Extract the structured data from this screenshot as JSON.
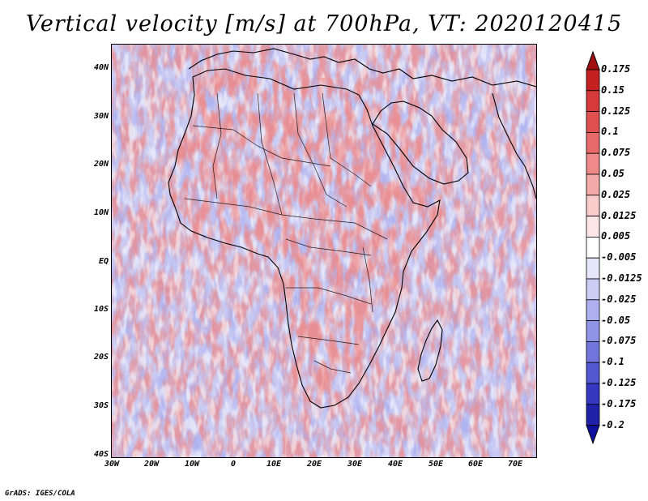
{
  "title": "Vertical velocity [m/s] at 700hPa, VT: 2020120415",
  "lat_labels": [
    "40N",
    "30N",
    "20N",
    "10N",
    "EQ",
    "10S",
    "20S",
    "30S",
    "40S"
  ],
  "lon_labels": [
    "30W",
    "20W",
    "10W",
    "0",
    "10E",
    "20E",
    "30E",
    "40E",
    "50E",
    "60E",
    "70E"
  ],
  "colorbar": {
    "levels": [
      "0.175",
      "0.15",
      "0.125",
      "0.1",
      "0.075",
      "0.05",
      "0.025",
      "0.0125",
      "0.005",
      "-0.005",
      "-0.0125",
      "-0.025",
      "-0.05",
      "-0.075",
      "-0.1",
      "-0.125",
      "-0.175",
      "-0.2"
    ],
    "colors": [
      "#a01010",
      "#c42020",
      "#d63a3a",
      "#e05050",
      "#e86a6a",
      "#ef8a8a",
      "#f5aaaa",
      "#f9cccc",
      "#fce6e6",
      "#ffffff",
      "#e6e6fa",
      "#cccdf5",
      "#aeb0ef",
      "#9094e6",
      "#7276dc",
      "#5458d0",
      "#3438c0",
      "#1e22a8",
      "#1010a0"
    ]
  },
  "footer": "GrADS: IGES/COLA",
  "map_colors": {
    "land_base": "#ffffff",
    "positive": "#e05050",
    "negative": "#7276dc",
    "coast": "#000000"
  }
}
